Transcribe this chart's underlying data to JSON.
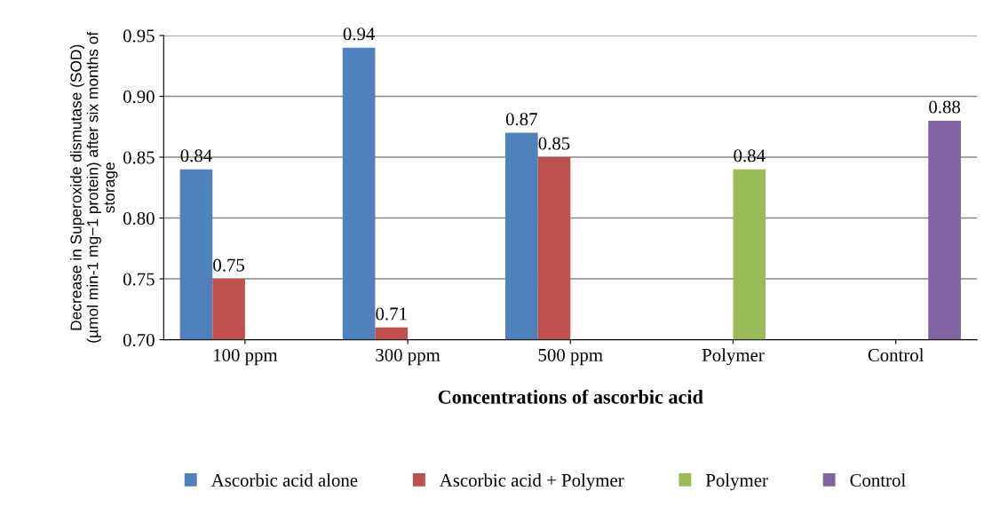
{
  "chart_data": {
    "type": "bar",
    "xlabel": "Concentrations of ascorbic acid",
    "ylabel": "Decrease in Superoxide dismutase (SOD)\n(µmol min-1 mg−1 protein) after six months of\nstorage",
    "categories": [
      "100 ppm",
      "300 ppm",
      "500 ppm",
      "Polymer",
      "Control"
    ],
    "series": [
      {
        "name": "Ascorbic acid alone",
        "color": "#4f81bd",
        "values": [
          0.84,
          0.94,
          0.87,
          null,
          null
        ]
      },
      {
        "name": "Ascorbic acid + Polymer",
        "color": "#c0504d",
        "values": [
          0.75,
          0.71,
          0.85,
          null,
          null
        ]
      },
      {
        "name": "Polymer",
        "color": "#9bbb59",
        "values": [
          null,
          null,
          null,
          0.84,
          null
        ]
      },
      {
        "name": "Control",
        "color": "#8064a2",
        "values": [
          null,
          null,
          null,
          null,
          0.88
        ]
      }
    ],
    "ylim": [
      0.7,
      0.95
    ],
    "yticks": [
      {
        "value": 0.7,
        "label": "0.70"
      },
      {
        "value": 0.75,
        "label": "0.75"
      },
      {
        "value": 0.8,
        "label": "0.80"
      },
      {
        "value": 0.85,
        "label": "0.85"
      },
      {
        "value": 0.9,
        "label": "0.90"
      },
      {
        "value": 0.95,
        "label": "0.95"
      }
    ],
    "grid": "y",
    "legend": "bottom",
    "data_labels": true
  }
}
